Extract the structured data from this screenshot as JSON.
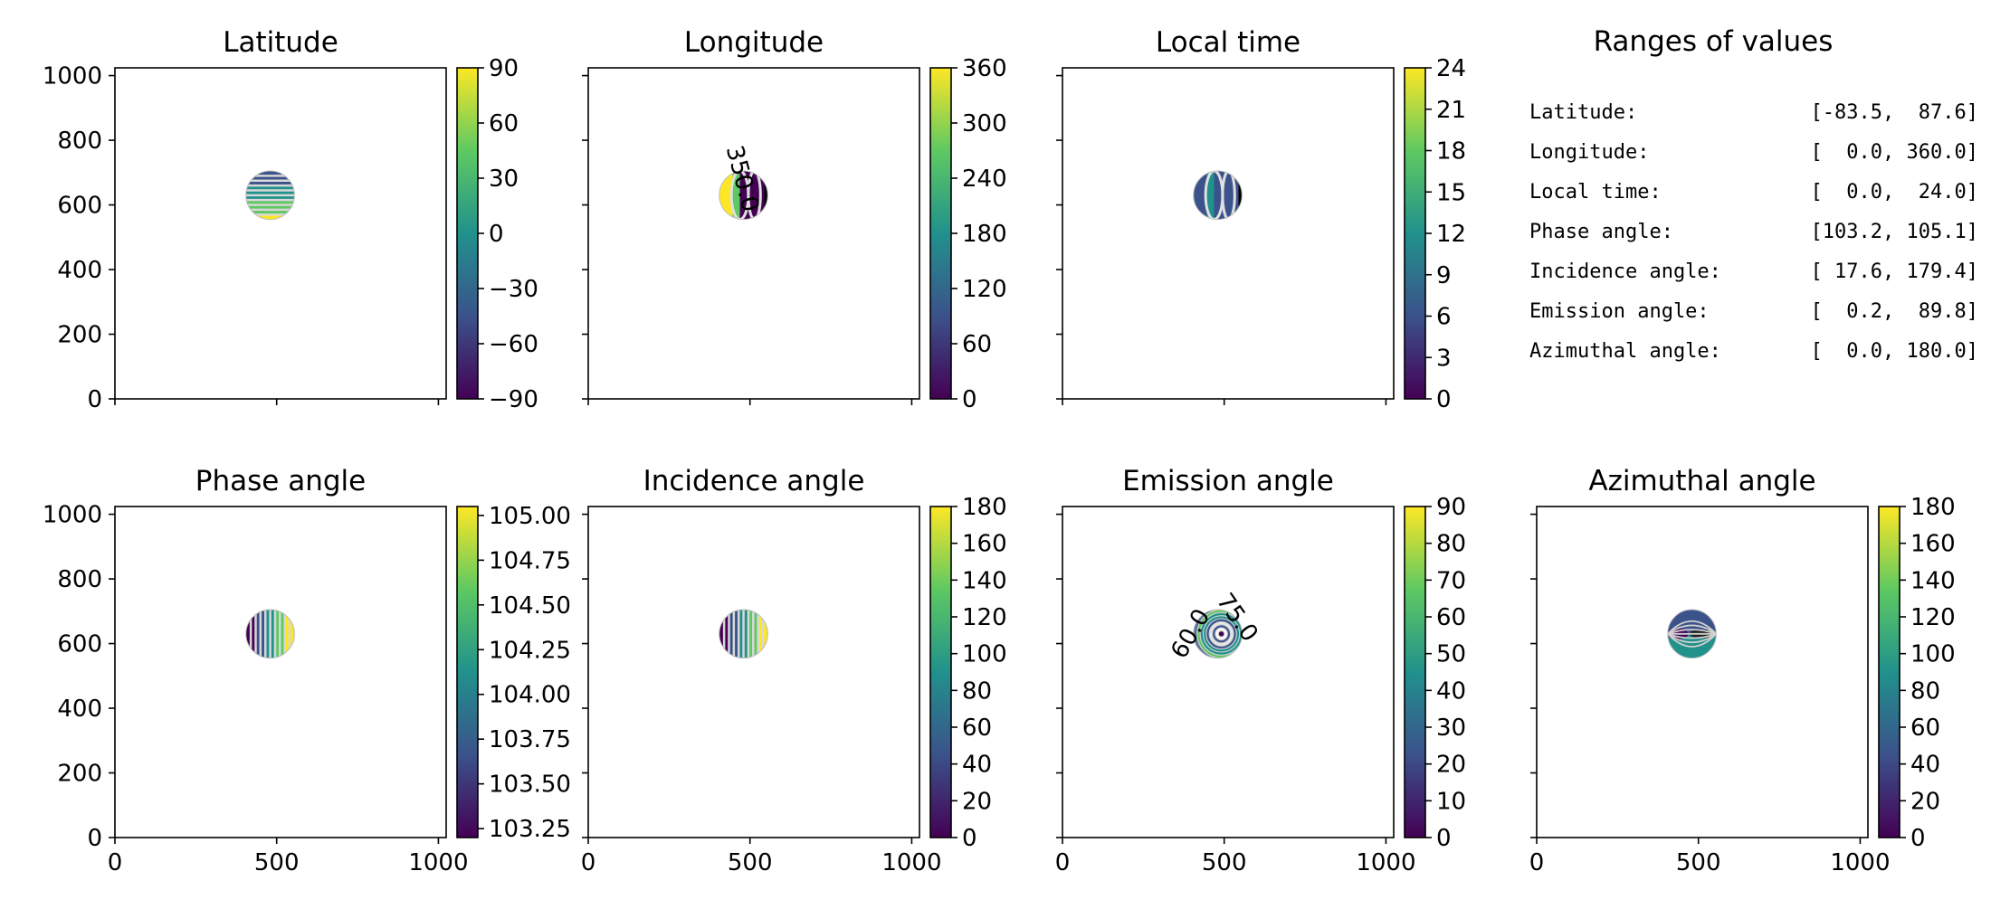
{
  "chart_data": [
    {
      "type": "heatmap",
      "title": "Latitude",
      "xlim": [
        0,
        1024
      ],
      "ylim": [
        0,
        1024
      ],
      "x_ticks": [
        "",
        "",
        ""
      ],
      "y_ticks": [
        "0",
        "200",
        "400",
        "600",
        "800",
        "1000"
      ],
      "disk": {
        "center": [
          480,
          630
        ],
        "radius": 75
      },
      "colorbar": {
        "range": [
          -90,
          90
        ],
        "ticks": [
          "−90",
          "−60",
          "−30",
          "0",
          "30",
          "60",
          "90"
        ]
      },
      "contour_labels": []
    },
    {
      "type": "heatmap",
      "title": "Longitude",
      "xlim": [
        0,
        1024
      ],
      "ylim": [
        0,
        1024
      ],
      "x_ticks": [
        "",
        "",
        ""
      ],
      "y_ticks": [
        "",
        "",
        "",
        "",
        "",
        ""
      ],
      "disk": {
        "center": [
          480,
          630
        ],
        "radius": 75
      },
      "colorbar": {
        "range": [
          0,
          360
        ],
        "ticks": [
          "0",
          "60",
          "120",
          "180",
          "240",
          "300",
          "360"
        ]
      },
      "contour_labels": [
        "350.0"
      ]
    },
    {
      "type": "heatmap",
      "title": "Local time",
      "xlim": [
        0,
        1024
      ],
      "ylim": [
        0,
        1024
      ],
      "x_ticks": [
        "",
        "",
        ""
      ],
      "y_ticks": [
        "",
        "",
        "",
        "",
        "",
        ""
      ],
      "disk": {
        "center": [
          480,
          630
        ],
        "radius": 75
      },
      "colorbar": {
        "range": [
          0,
          24
        ],
        "ticks": [
          "0",
          "3",
          "6",
          "9",
          "12",
          "15",
          "18",
          "21",
          "24"
        ]
      },
      "contour_labels": []
    },
    {
      "type": "heatmap",
      "title": "Phase angle",
      "xlim": [
        0,
        1024
      ],
      "ylim": [
        0,
        1024
      ],
      "x_ticks": [
        "0",
        "500",
        "1000"
      ],
      "y_ticks": [
        "0",
        "200",
        "400",
        "600",
        "800",
        "1000"
      ],
      "disk": {
        "center": [
          480,
          630
        ],
        "radius": 75
      },
      "colorbar": {
        "range": [
          103.2,
          105.05
        ],
        "ticks": [
          "103.25",
          "103.50",
          "103.75",
          "104.00",
          "104.25",
          "104.50",
          "104.75",
          "105.00"
        ]
      },
      "contour_labels": []
    },
    {
      "type": "heatmap",
      "title": "Incidence angle",
      "xlim": [
        0,
        1024
      ],
      "ylim": [
        0,
        1024
      ],
      "x_ticks": [
        "0",
        "500",
        "1000"
      ],
      "y_ticks": [
        "",
        "",
        "",
        "",
        "",
        ""
      ],
      "disk": {
        "center": [
          480,
          630
        ],
        "radius": 75
      },
      "colorbar": {
        "range": [
          0,
          180
        ],
        "ticks": [
          "0",
          "20",
          "40",
          "60",
          "80",
          "100",
          "120",
          "140",
          "160",
          "180"
        ]
      },
      "contour_labels": []
    },
    {
      "type": "heatmap",
      "title": "Emission angle",
      "xlim": [
        0,
        1024
      ],
      "ylim": [
        0,
        1024
      ],
      "x_ticks": [
        "0",
        "500",
        "1000"
      ],
      "y_ticks": [
        "",
        "",
        "",
        "",
        "",
        ""
      ],
      "disk": {
        "center": [
          480,
          630
        ],
        "radius": 75
      },
      "colorbar": {
        "range": [
          0,
          90
        ],
        "ticks": [
          "0",
          "10",
          "20",
          "30",
          "40",
          "50",
          "60",
          "70",
          "80",
          "90"
        ]
      },
      "contour_labels": [
        "75.0",
        "60.0"
      ]
    },
    {
      "type": "heatmap",
      "title": "Azimuthal angle",
      "xlim": [
        0,
        1024
      ],
      "ylim": [
        0,
        1024
      ],
      "x_ticks": [
        "0",
        "500",
        "1000"
      ],
      "y_ticks": [
        "",
        "",
        "",
        "",
        "",
        ""
      ],
      "disk": {
        "center": [
          480,
          630
        ],
        "radius": 75
      },
      "colorbar": {
        "range": [
          0,
          180
        ],
        "ticks": [
          "0",
          "20",
          "40",
          "60",
          "80",
          "100",
          "120",
          "140",
          "160",
          "180"
        ]
      },
      "contour_labels": []
    }
  ],
  "ranges_panel": {
    "title": "Ranges of values",
    "rows": [
      {
        "label": "Latitude:",
        "value": "[-83.5,  87.6]"
      },
      {
        "label": "Longitude:",
        "value": "[  0.0, 360.0]"
      },
      {
        "label": "Local time:",
        "value": "[  0.0,  24.0]"
      },
      {
        "label": "Phase angle:",
        "value": "[103.2, 105.1]"
      },
      {
        "label": "Incidence angle:",
        "value": "[ 17.6, 179.4]"
      },
      {
        "label": "Emission angle:",
        "value": "[  0.2,  89.8]"
      },
      {
        "label": "Azimuthal angle:",
        "value": "[  0.0, 180.0]"
      }
    ]
  },
  "colormap": "viridis",
  "colors": {
    "viridis_0": "#440154",
    "viridis_25": "#3b528b",
    "viridis_50": "#21918c",
    "viridis_75": "#5ec962",
    "viridis_100": "#fde725"
  }
}
